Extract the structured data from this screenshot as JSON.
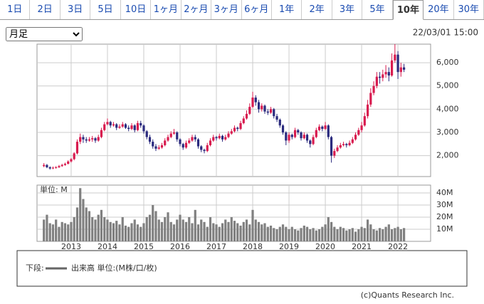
{
  "ui": {
    "tabs": [
      "1日",
      "2日",
      "3日",
      "5日",
      "10日",
      "1ヶ月",
      "2ヶ月",
      "3ヶ月",
      "6ヶ月",
      "1年",
      "2年",
      "3年",
      "5年",
      "10年",
      "20年",
      "30年"
    ],
    "selected_tab": 13,
    "period_select": "月足",
    "timestamp": "22/03/01 15:00",
    "credit": "(c)Quants Research Inc."
  },
  "chart_data": [
    {
      "type": "candlestick",
      "up_color": "#d81b4f",
      "down_color": "#2a2a7e",
      "grid": true,
      "xlim": [
        2012.06,
        2022.9
      ],
      "xticks": [
        2013,
        2014,
        2015,
        2016,
        2017,
        2018,
        2019,
        2020,
        2021,
        2022
      ],
      "ylim": [
        1100,
        6800
      ],
      "yticks": [
        {
          "value": 2000,
          "label": "2,000"
        },
        {
          "value": 3000,
          "label": "3,000"
        },
        {
          "value": 4000,
          "label": "4,000"
        },
        {
          "value": 5000,
          "label": "5,000"
        },
        {
          "value": 6000,
          "label": "6,000"
        }
      ],
      "x": [
        2012.25,
        2012.333,
        2012.417,
        2012.5,
        2012.583,
        2012.667,
        2012.75,
        2012.833,
        2012.917,
        2013,
        2013.083,
        2013.167,
        2013.25,
        2013.333,
        2013.417,
        2013.5,
        2013.583,
        2013.667,
        2013.75,
        2013.833,
        2013.917,
        2014,
        2014.083,
        2014.167,
        2014.25,
        2014.333,
        2014.417,
        2014.5,
        2014.583,
        2014.667,
        2014.75,
        2014.833,
        2014.917,
        2015,
        2015.083,
        2015.167,
        2015.25,
        2015.333,
        2015.417,
        2015.5,
        2015.583,
        2015.667,
        2015.75,
        2015.833,
        2015.917,
        2016,
        2016.083,
        2016.167,
        2016.25,
        2016.333,
        2016.417,
        2016.5,
        2016.583,
        2016.667,
        2016.75,
        2016.833,
        2016.917,
        2017,
        2017.083,
        2017.167,
        2017.25,
        2017.333,
        2017.417,
        2017.5,
        2017.583,
        2017.667,
        2017.75,
        2017.833,
        2017.917,
        2018,
        2018.083,
        2018.167,
        2018.25,
        2018.333,
        2018.417,
        2018.5,
        2018.583,
        2018.667,
        2018.75,
        2018.833,
        2018.917,
        2019,
        2019.083,
        2019.167,
        2019.25,
        2019.333,
        2019.417,
        2019.5,
        2019.583,
        2019.667,
        2019.75,
        2019.833,
        2019.917,
        2020,
        2020.083,
        2020.167,
        2020.25,
        2020.333,
        2020.417,
        2020.5,
        2020.583,
        2020.667,
        2020.75,
        2020.833,
        2020.917,
        2021,
        2021.083,
        2021.167,
        2021.25,
        2021.333,
        2021.417,
        2021.5,
        2021.583,
        2021.667,
        2021.75,
        2021.833,
        2021.917,
        2022,
        2022.083,
        2022.167
      ],
      "ohlc": [
        [
          1550,
          1680,
          1500,
          1600
        ],
        [
          1600,
          1640,
          1460,
          1500
        ],
        [
          1500,
          1540,
          1400,
          1450
        ],
        [
          1450,
          1530,
          1420,
          1480
        ],
        [
          1480,
          1550,
          1440,
          1500
        ],
        [
          1500,
          1600,
          1470,
          1550
        ],
        [
          1550,
          1650,
          1520,
          1600
        ],
        [
          1600,
          1700,
          1560,
          1650
        ],
        [
          1650,
          1800,
          1620,
          1750
        ],
        [
          1750,
          1900,
          1700,
          1850
        ],
        [
          1850,
          2150,
          1800,
          2100
        ],
        [
          2100,
          2700,
          2050,
          2600
        ],
        [
          2600,
          2950,
          2500,
          2800
        ],
        [
          2800,
          2900,
          2550,
          2700
        ],
        [
          2700,
          2800,
          2550,
          2650
        ],
        [
          2650,
          2800,
          2600,
          2700
        ],
        [
          2700,
          2850,
          2600,
          2750
        ],
        [
          2750,
          2800,
          2550,
          2650
        ],
        [
          2650,
          2900,
          2600,
          2800
        ],
        [
          2800,
          3200,
          2750,
          3100
        ],
        [
          3100,
          3450,
          3050,
          3350
        ],
        [
          3350,
          3600,
          3300,
          3450
        ],
        [
          3450,
          3500,
          3200,
          3300
        ],
        [
          3300,
          3450,
          3250,
          3350
        ],
        [
          3350,
          3400,
          3100,
          3200
        ],
        [
          3200,
          3350,
          3150,
          3250
        ],
        [
          3250,
          3450,
          3200,
          3350
        ],
        [
          3350,
          3400,
          3150,
          3200
        ],
        [
          3200,
          3300,
          3050,
          3150
        ],
        [
          3150,
          3400,
          3100,
          3300
        ],
        [
          3300,
          3350,
          3000,
          3100
        ],
        [
          3100,
          3500,
          3050,
          3400
        ],
        [
          3400,
          3500,
          3200,
          3300
        ],
        [
          3300,
          3350,
          2950,
          3050
        ],
        [
          3050,
          3100,
          2700,
          2800
        ],
        [
          2800,
          2900,
          2500,
          2600
        ],
        [
          2600,
          2700,
          2300,
          2400
        ],
        [
          2400,
          2500,
          2200,
          2300
        ],
        [
          2300,
          2450,
          2250,
          2350
        ],
        [
          2350,
          2550,
          2300,
          2450
        ],
        [
          2450,
          2750,
          2400,
          2650
        ],
        [
          2650,
          2900,
          2600,
          2800
        ],
        [
          2800,
          3050,
          2750,
          2950
        ],
        [
          2950,
          3150,
          2900,
          3000
        ],
        [
          3000,
          3050,
          2600,
          2700
        ],
        [
          2700,
          2750,
          2400,
          2500
        ],
        [
          2500,
          2550,
          2250,
          2350
        ],
        [
          2350,
          2650,
          2300,
          2550
        ],
        [
          2550,
          2750,
          2500,
          2650
        ],
        [
          2650,
          2900,
          2600,
          2800
        ],
        [
          2800,
          2900,
          2600,
          2700
        ],
        [
          2700,
          2750,
          2300,
          2400
        ],
        [
          2400,
          2450,
          2150,
          2250
        ],
        [
          2250,
          2300,
          2100,
          2200
        ],
        [
          2200,
          2550,
          2150,
          2450
        ],
        [
          2450,
          2750,
          2400,
          2650
        ],
        [
          2650,
          2900,
          2600,
          2800
        ],
        [
          2800,
          2850,
          2650,
          2750
        ],
        [
          2750,
          2950,
          2700,
          2850
        ],
        [
          2850,
          2900,
          2600,
          2700
        ],
        [
          2700,
          2900,
          2650,
          2800
        ],
        [
          2800,
          3050,
          2750,
          2950
        ],
        [
          2950,
          3150,
          2900,
          3050
        ],
        [
          3050,
          3300,
          3000,
          3200
        ],
        [
          3200,
          3250,
          3050,
          3150
        ],
        [
          3150,
          3500,
          3100,
          3400
        ],
        [
          3400,
          3700,
          3350,
          3600
        ],
        [
          3600,
          3950,
          3550,
          3800
        ],
        [
          3800,
          4250,
          3750,
          4100
        ],
        [
          4100,
          4750,
          4050,
          4500
        ],
        [
          4500,
          4600,
          4150,
          4300
        ],
        [
          4300,
          4400,
          3850,
          4000
        ],
        [
          4000,
          4250,
          3900,
          4150
        ],
        [
          4150,
          4200,
          3800,
          3900
        ],
        [
          3900,
          4000,
          3750,
          3850
        ],
        [
          3850,
          4100,
          3800,
          4000
        ],
        [
          4000,
          4050,
          3600,
          3700
        ],
        [
          3700,
          3800,
          3450,
          3550
        ],
        [
          3550,
          3600,
          3200,
          3300
        ],
        [
          3300,
          3350,
          2900,
          3000
        ],
        [
          3000,
          3050,
          2450,
          2650
        ],
        [
          2650,
          3000,
          2550,
          2900
        ],
        [
          2900,
          2950,
          2700,
          2800
        ],
        [
          2800,
          3200,
          2750,
          3100
        ],
        [
          3100,
          3150,
          2900,
          3000
        ],
        [
          3000,
          3050,
          2650,
          2750
        ],
        [
          2750,
          3000,
          2700,
          2900
        ],
        [
          2900,
          2950,
          2550,
          2650
        ],
        [
          2650,
          2700,
          2350,
          2500
        ],
        [
          2500,
          2900,
          2450,
          2800
        ],
        [
          2800,
          3200,
          2750,
          3100
        ],
        [
          3100,
          3350,
          3050,
          3250
        ],
        [
          3250,
          3300,
          3050,
          3150
        ],
        [
          3150,
          3450,
          3100,
          3300
        ],
        [
          3300,
          3350,
          2700,
          2800
        ],
        [
          2800,
          2850,
          1700,
          2000
        ],
        [
          2000,
          2300,
          1900,
          2200
        ],
        [
          2200,
          2450,
          2150,
          2350
        ],
        [
          2350,
          2550,
          2300,
          2450
        ],
        [
          2450,
          2600,
          2400,
          2500
        ],
        [
          2500,
          2550,
          2350,
          2450
        ],
        [
          2450,
          2650,
          2400,
          2550
        ],
        [
          2550,
          2800,
          2500,
          2700
        ],
        [
          2700,
          3000,
          2650,
          2900
        ],
        [
          2900,
          3200,
          2850,
          3100
        ],
        [
          3100,
          3450,
          3000,
          3300
        ],
        [
          3300,
          3850,
          3250,
          3700
        ],
        [
          3700,
          4400,
          3600,
          4200
        ],
        [
          4200,
          4900,
          4100,
          4700
        ],
        [
          4700,
          5200,
          4600,
          5000
        ],
        [
          5000,
          5600,
          4900,
          5400
        ],
        [
          5400,
          5600,
          5100,
          5350
        ],
        [
          5350,
          5700,
          5200,
          5500
        ],
        [
          5500,
          5900,
          5350,
          5600
        ],
        [
          5600,
          5800,
          5200,
          5450
        ],
        [
          5450,
          6400,
          5400,
          6100
        ],
        [
          6100,
          6800,
          6000,
          6350
        ],
        [
          6350,
          6500,
          5300,
          5600
        ],
        [
          5600,
          6000,
          5400,
          5800
        ],
        [
          5800,
          5950,
          5600,
          5700
        ]
      ]
    },
    {
      "type": "bar",
      "unit_label": "単位: M",
      "color": "#808080",
      "grid": true,
      "xlim": [
        2012.06,
        2022.9
      ],
      "xticks": [
        2013,
        2014,
        2015,
        2016,
        2017,
        2018,
        2019,
        2020,
        2021,
        2022
      ],
      "ylim": [
        0,
        46.5
      ],
      "yticks": [
        {
          "value": 10,
          "label": "10M"
        },
        {
          "value": 20,
          "label": "20M"
        },
        {
          "value": 30,
          "label": "30M"
        },
        {
          "value": 40,
          "label": "40M"
        }
      ],
      "legend": {
        "prefix": "下段:",
        "label": "出来高 単位:(M株/口/枚)"
      },
      "values": [
        18,
        22,
        15,
        14,
        18,
        12,
        16,
        15,
        14,
        16,
        20,
        28,
        44,
        35,
        28,
        25,
        20,
        18,
        22,
        26,
        20,
        18,
        16,
        15,
        17,
        14,
        20,
        13,
        12,
        15,
        18,
        14,
        12,
        15,
        20,
        22,
        30,
        25,
        18,
        16,
        20,
        24,
        16,
        14,
        18,
        22,
        18,
        16,
        20,
        15,
        26,
        14,
        18,
        16,
        12,
        20,
        15,
        14,
        12,
        15,
        18,
        16,
        20,
        17,
        15,
        13,
        16,
        18,
        14,
        26,
        18,
        16,
        14,
        15,
        12,
        13,
        11,
        10,
        12,
        14,
        12,
        10,
        12,
        10,
        9,
        11,
        13,
        12,
        10,
        11,
        9,
        10,
        12,
        14,
        20,
        16,
        12,
        10,
        12,
        11,
        9,
        10,
        11,
        8,
        10,
        12,
        11,
        18,
        14,
        10,
        9,
        11,
        10,
        12,
        14,
        10,
        11,
        12,
        10,
        11
      ]
    }
  ]
}
